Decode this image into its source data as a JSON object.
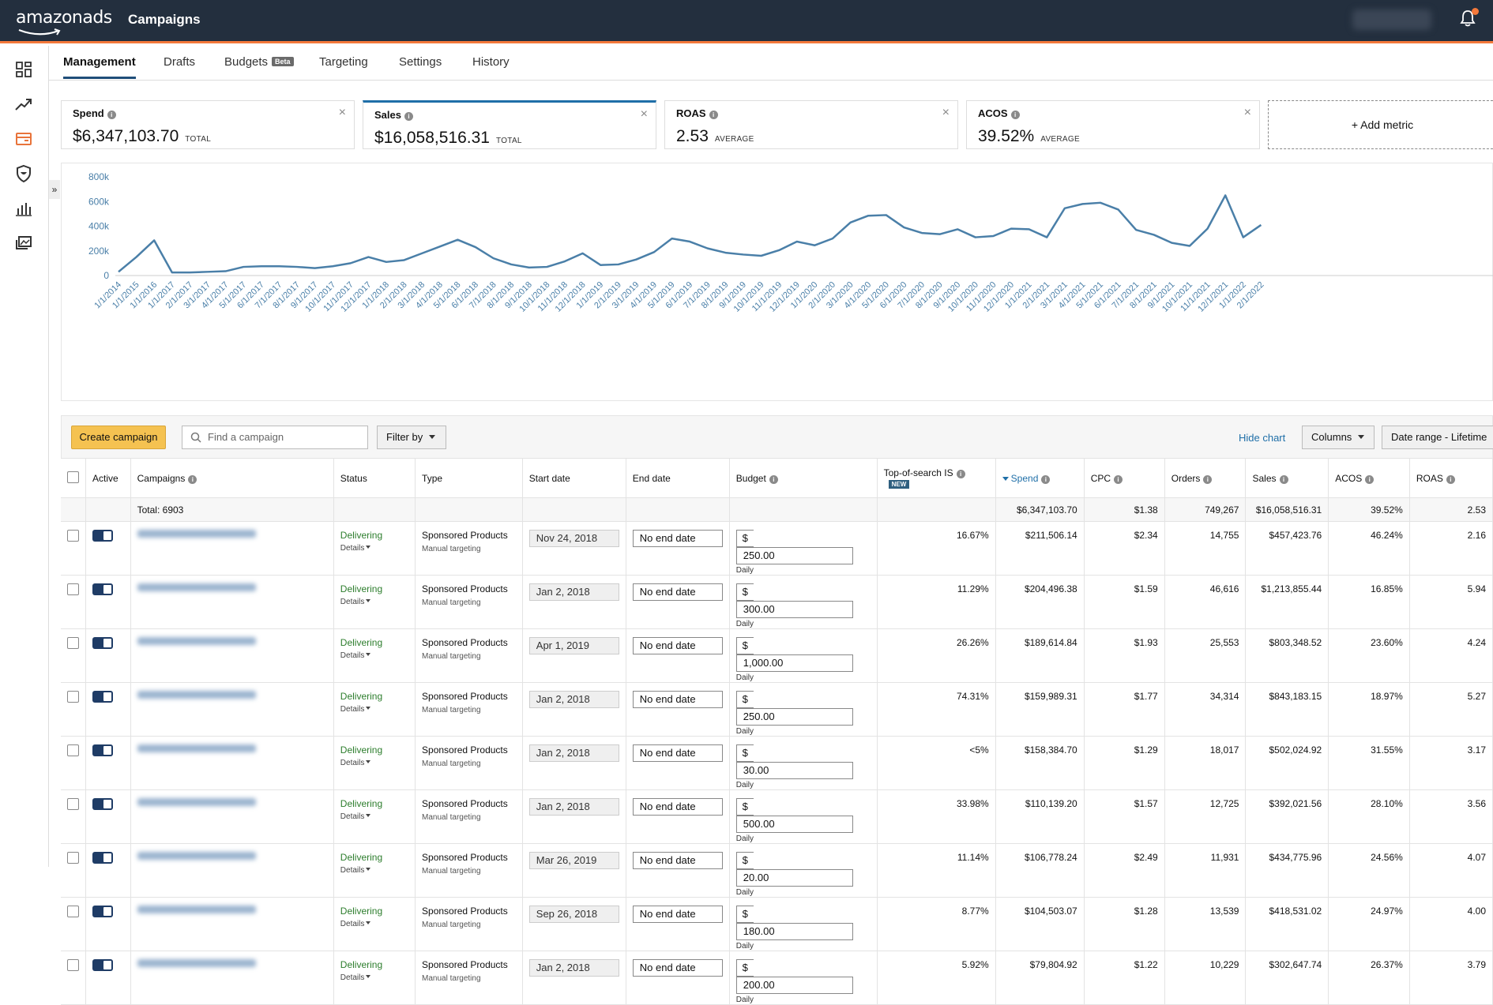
{
  "header": {
    "brand_main": "amazon",
    "brand_ads": "ads",
    "title": "Campaigns"
  },
  "sidebar": {
    "icons": [
      "dashboard-icon",
      "trend-icon",
      "campaign-card-icon",
      "shield-icon",
      "bar-chart-icon",
      "gallery-icon"
    ],
    "expand_label": "»"
  },
  "tabs": [
    {
      "label": "Management",
      "active": true
    },
    {
      "label": "Drafts"
    },
    {
      "label": "Budgets",
      "badge": "Beta"
    },
    {
      "label": "Targeting"
    },
    {
      "label": "Settings"
    },
    {
      "label": "History"
    }
  ],
  "metrics": [
    {
      "label": "Spend",
      "value": "$6,347,103.70",
      "unit": "TOTAL"
    },
    {
      "label": "Sales",
      "value": "$16,058,516.31",
      "unit": "TOTAL",
      "selected": true
    },
    {
      "label": "ROAS",
      "value": "2.53",
      "unit": "AVERAGE"
    },
    {
      "label": "ACOS",
      "value": "39.52%",
      "unit": "AVERAGE"
    }
  ],
  "add_metric_label": "+ Add metric",
  "chart_data": {
    "type": "line",
    "ylim": [
      0,
      800000
    ],
    "yticks": [
      "0",
      "200k",
      "400k",
      "600k",
      "800k"
    ],
    "color": "#4a7fa8",
    "x": [
      "1/1/2014",
      "1/1/2015",
      "1/1/2016",
      "1/1/2017",
      "2/1/2017",
      "3/1/2017",
      "4/1/2017",
      "5/1/2017",
      "6/1/2017",
      "7/1/2017",
      "8/1/2017",
      "9/1/2017",
      "10/1/2017",
      "11/1/2017",
      "12/1/2017",
      "1/1/2018",
      "2/1/2018",
      "3/1/2018",
      "4/1/2018",
      "5/1/2018",
      "6/1/2018",
      "7/1/2018",
      "8/1/2018",
      "9/1/2018",
      "10/1/2018",
      "11/1/2018",
      "12/1/2018",
      "1/1/2019",
      "2/1/2019",
      "3/1/2019",
      "4/1/2019",
      "5/1/2019",
      "6/1/2019",
      "7/1/2019",
      "8/1/2019",
      "9/1/2019",
      "10/1/2019",
      "11/1/2019",
      "12/1/2019",
      "1/1/2020",
      "2/1/2020",
      "3/1/2020",
      "4/1/2020",
      "5/1/2020",
      "6/1/2020",
      "7/1/2020",
      "8/1/2020",
      "9/1/2020",
      "10/1/2020",
      "11/1/2020",
      "12/1/2020",
      "1/1/2021",
      "2/1/2021",
      "3/1/2021",
      "4/1/2021",
      "5/1/2021",
      "6/1/2021",
      "7/1/2021",
      "8/1/2021",
      "9/1/2021",
      "10/1/2021",
      "11/1/2021",
      "12/1/2021",
      "1/1/2022",
      "2/1/2022"
    ],
    "values": [
      30000,
      150000,
      285000,
      25000,
      25000,
      30000,
      35000,
      70000,
      75000,
      75000,
      70000,
      60000,
      75000,
      100000,
      150000,
      110000,
      125000,
      180000,
      235000,
      290000,
      230000,
      140000,
      90000,
      65000,
      70000,
      115000,
      180000,
      85000,
      90000,
      130000,
      190000,
      300000,
      275000,
      220000,
      185000,
      170000,
      160000,
      205000,
      275000,
      245000,
      300000,
      430000,
      485000,
      490000,
      390000,
      345000,
      335000,
      375000,
      310000,
      320000,
      380000,
      375000,
      310000,
      545000,
      580000,
      590000,
      535000,
      370000,
      330000,
      265000,
      240000,
      380000,
      650000,
      310000,
      410000
    ]
  },
  "toolbar": {
    "create_label": "Create campaign",
    "search_placeholder": "Find a campaign",
    "filter_label": "Filter by",
    "hide_chart_label": "Hide chart",
    "columns_label": "Columns",
    "date_range_label": "Date range - Lifetime"
  },
  "table": {
    "headers": {
      "active": "Active",
      "campaigns": "Campaigns",
      "status": "Status",
      "type": "Type",
      "start": "Start date",
      "end": "End date",
      "budget": "Budget",
      "tos": "Top-of-search IS",
      "tos_badge": "NEW",
      "spend": "Spend",
      "cpc": "CPC",
      "orders": "Orders",
      "sales": "Sales",
      "acos": "ACOS",
      "roas": "ROAS"
    },
    "total": {
      "label": "Total: 6903",
      "spend": "$6,347,103.70",
      "cpc": "$1.38",
      "orders": "749,267",
      "sales": "$16,058,516.31",
      "acos": "39.52%",
      "roas": "2.53"
    },
    "rows": [
      {
        "status": "Delivering",
        "details": "Details",
        "type": "Sponsored Products",
        "targeting": "Manual targeting",
        "start": "Nov 24, 2018",
        "end": "No end date",
        "currency": "$",
        "budget": "250.00",
        "period": "Daily",
        "tos": "16.67%",
        "spend": "$211,506.14",
        "cpc": "$2.34",
        "orders": "14,755",
        "sales": "$457,423.76",
        "acos": "46.24%",
        "roas": "2.16"
      },
      {
        "status": "Delivering",
        "details": "Details",
        "type": "Sponsored Products",
        "targeting": "Manual targeting",
        "start": "Jan 2, 2018",
        "end": "No end date",
        "currency": "$",
        "budget": "300.00",
        "period": "Daily",
        "tos": "11.29%",
        "spend": "$204,496.38",
        "cpc": "$1.59",
        "orders": "46,616",
        "sales": "$1,213,855.44",
        "acos": "16.85%",
        "roas": "5.94"
      },
      {
        "status": "Delivering",
        "details": "Details",
        "type": "Sponsored Products",
        "targeting": "Manual targeting",
        "start": "Apr 1, 2019",
        "end": "No end date",
        "currency": "$",
        "budget": "1,000.00",
        "period": "Daily",
        "tos": "26.26%",
        "spend": "$189,614.84",
        "cpc": "$1.93",
        "orders": "25,553",
        "sales": "$803,348.52",
        "acos": "23.60%",
        "roas": "4.24"
      },
      {
        "status": "Delivering",
        "details": "Details",
        "type": "Sponsored Products",
        "targeting": "Manual targeting",
        "start": "Jan 2, 2018",
        "end": "No end date",
        "currency": "$",
        "budget": "250.00",
        "period": "Daily",
        "tos": "74.31%",
        "spend": "$159,989.31",
        "cpc": "$1.77",
        "orders": "34,314",
        "sales": "$843,183.15",
        "acos": "18.97%",
        "roas": "5.27"
      },
      {
        "status": "Delivering",
        "details": "Details",
        "type": "Sponsored Products",
        "targeting": "Manual targeting",
        "start": "Jan 2, 2018",
        "end": "No end date",
        "currency": "$",
        "budget": "30.00",
        "period": "Daily",
        "tos": "<5%",
        "spend": "$158,384.70",
        "cpc": "$1.29",
        "orders": "18,017",
        "sales": "$502,024.92",
        "acos": "31.55%",
        "roas": "3.17"
      },
      {
        "status": "Delivering",
        "details": "Details",
        "type": "Sponsored Products",
        "targeting": "Manual targeting",
        "start": "Jan 2, 2018",
        "end": "No end date",
        "currency": "$",
        "budget": "500.00",
        "period": "Daily",
        "tos": "33.98%",
        "spend": "$110,139.20",
        "cpc": "$1.57",
        "orders": "12,725",
        "sales": "$392,021.56",
        "acos": "28.10%",
        "roas": "3.56"
      },
      {
        "status": "Delivering",
        "details": "Details",
        "type": "Sponsored Products",
        "targeting": "Manual targeting",
        "start": "Mar 26, 2019",
        "end": "No end date",
        "currency": "$",
        "budget": "20.00",
        "period": "Daily",
        "tos": "11.14%",
        "spend": "$106,778.24",
        "cpc": "$2.49",
        "orders": "11,931",
        "sales": "$434,775.96",
        "acos": "24.56%",
        "roas": "4.07"
      },
      {
        "status": "Delivering",
        "details": "Details",
        "type": "Sponsored Products",
        "targeting": "Manual targeting",
        "start": "Sep 26, 2018",
        "end": "No end date",
        "currency": "$",
        "budget": "180.00",
        "period": "Daily",
        "tos": "8.77%",
        "spend": "$104,503.07",
        "cpc": "$1.28",
        "orders": "13,539",
        "sales": "$418,531.02",
        "acos": "24.97%",
        "roas": "4.00"
      },
      {
        "status": "Delivering",
        "details": "Details",
        "type": "Sponsored Products",
        "targeting": "Manual targeting",
        "start": "Jan 2, 2018",
        "end": "No end date",
        "currency": "$",
        "budget": "200.00",
        "period": "Daily",
        "tos": "5.92%",
        "spend": "$79,804.92",
        "cpc": "$1.22",
        "orders": "10,229",
        "sales": "$302,647.74",
        "acos": "26.37%",
        "roas": "3.79"
      }
    ]
  }
}
